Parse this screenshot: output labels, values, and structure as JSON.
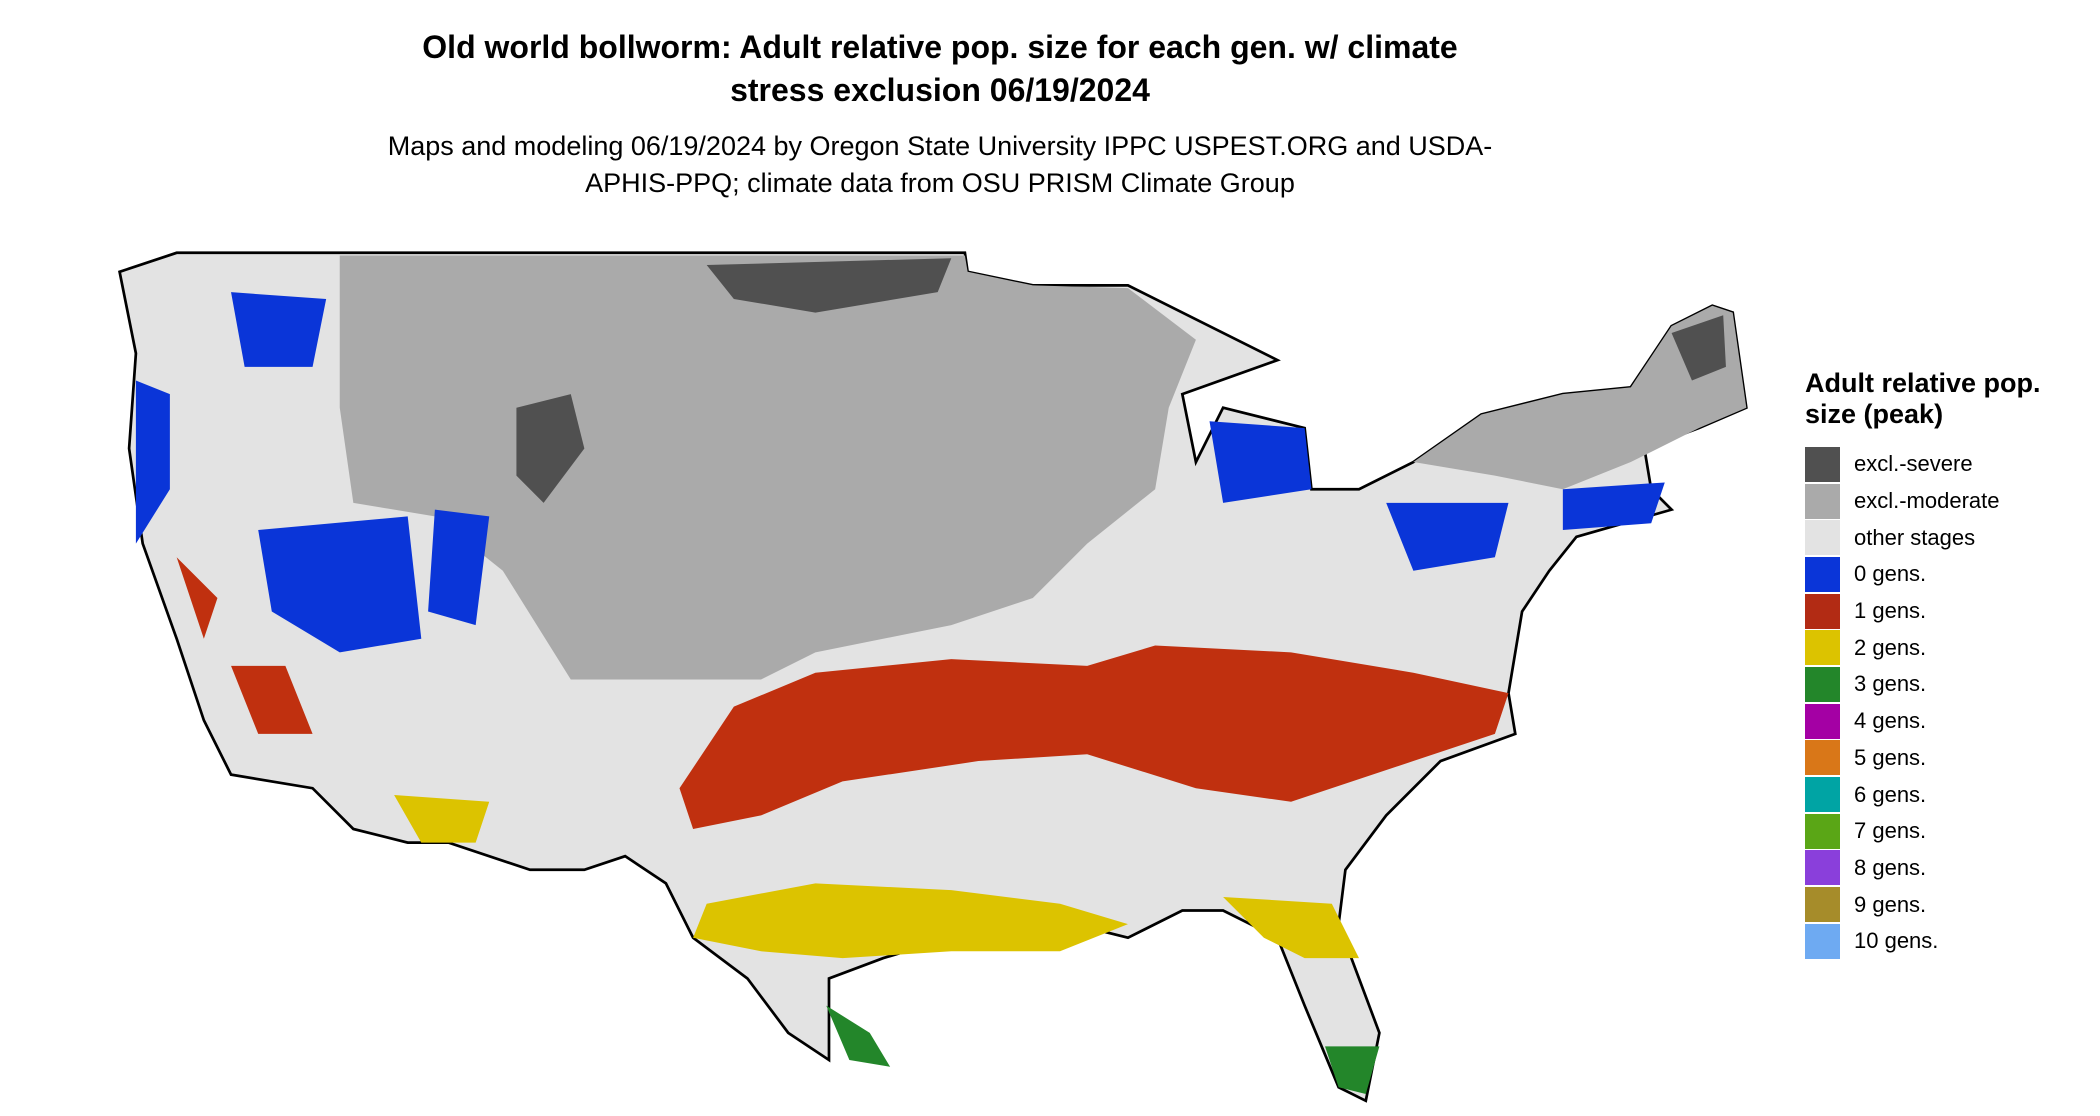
{
  "title": "Old world bollworm: Adult relative pop. size for each gen. w/ climate stress exclusion 06/19/2024",
  "subtitle": "Maps and modeling 06/19/2024 by Oregon State University IPPC USPEST.ORG and USDA-APHIS-PPQ; climate data from OSU PRISM Climate Group",
  "legend": {
    "title": "Adult relative pop. size (peak)",
    "items": [
      {
        "label": "excl.-severe",
        "color": "#505050"
      },
      {
        "label": "excl.-moderate",
        "color": "#aaaaaa"
      },
      {
        "label": "other stages",
        "color": "#e3e3e3"
      },
      {
        "label": "0 gens.",
        "color": "#0a35d8"
      },
      {
        "label": "1 gens.",
        "color": "#b22b14"
      },
      {
        "label": "2 gens.",
        "color": "#dcc300"
      },
      {
        "label": "3 gens.",
        "color": "#23862a"
      },
      {
        "label": "4 gens.",
        "color": "#a400a4"
      },
      {
        "label": "5 gens.",
        "color": "#d97718"
      },
      {
        "label": "6 gens.",
        "color": "#00a4a4"
      },
      {
        "label": "7 gens.",
        "color": "#5aa616"
      },
      {
        "label": "8 gens.",
        "color": "#8a3fdb"
      },
      {
        "label": "9 gens.",
        "color": "#a68c2a"
      },
      {
        "label": "10 gens.",
        "color": "#6eaaf2"
      }
    ]
  }
}
